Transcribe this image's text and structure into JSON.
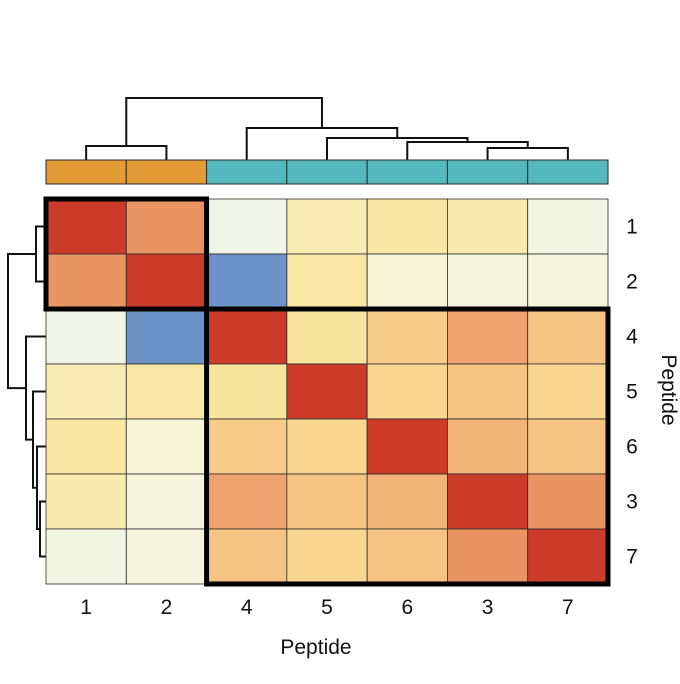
{
  "chart_data": {
    "type": "heatmap",
    "title": "",
    "xlabel": "Peptide",
    "ylabel": "Peptide",
    "order": [
      "1",
      "2",
      "4",
      "5",
      "6",
      "3",
      "7"
    ],
    "matrix": [
      [
        1.0,
        0.75,
        -0.35,
        0.02,
        0.12,
        0.05,
        -0.3
      ],
      [
        0.75,
        1.0,
        -0.9,
        0.1,
        -0.2,
        -0.25,
        -0.25
      ],
      [
        -0.35,
        -0.9,
        1.0,
        0.15,
        0.45,
        0.7,
        0.5
      ],
      [
        0.02,
        0.1,
        0.15,
        1.0,
        0.35,
        0.5,
        0.35
      ],
      [
        0.12,
        -0.2,
        0.45,
        0.35,
        1.0,
        0.6,
        0.5
      ],
      [
        0.05,
        -0.25,
        0.7,
        0.5,
        0.6,
        1.0,
        0.75
      ],
      [
        -0.3,
        -0.25,
        0.5,
        0.35,
        0.5,
        0.75,
        1.0
      ]
    ],
    "value_range": [
      -1,
      1
    ],
    "color_scale": [
      "#4572b7",
      "#b8d1e7",
      "#eef5f1",
      "#f8f4d1",
      "#f9e59e",
      "#f7d08a",
      "#eea06b",
      "#cc3b2a"
    ],
    "clusters": [
      {
        "members": [
          "1",
          "2"
        ],
        "color": "#e29a35"
      },
      {
        "members": [
          "4",
          "5",
          "6",
          "3",
          "7"
        ],
        "color": "#56b8bf"
      }
    ]
  }
}
